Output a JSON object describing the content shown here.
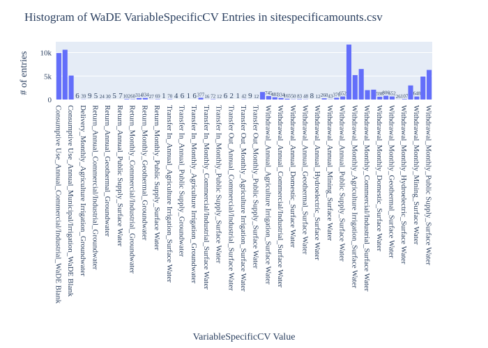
{
  "chart_data": {
    "type": "bar",
    "title": "Histogram of WaDE VariableSpecificCV Entries in sitespecificamounts.csv",
    "x_label": "VariableSpecificCV Value",
    "y_label": "# of entries",
    "color": "#636efa",
    "grid": true,
    "ylim": [
      0,
      12300
    ],
    "yticks": [
      0,
      {
        "value": 5000,
        "label": "5k"
      },
      {
        "value": 10000,
        "label": "10k"
      }
    ],
    "categories": [
      "Consumptive Use_Annual_Commercial/Industrial_WaDE Blank",
      null,
      "Consumptive Use_Annual_Municipal/Irrigation_WaDE Blank",
      null,
      "Delivery_Monthly_Agriculture Irrigation_Groundwater",
      null,
      "Return_Annual_Commercial/Industrial_Groundwater",
      null,
      "Return_Annual_Geothermal_Groundwater",
      null,
      "Return_Annual_Public Supply_Surface Water",
      null,
      "Return_Monthly_Commercial/Industrial_Groundwater",
      null,
      "Return_Monthly_Geothermal_Groundwater",
      null,
      "Return_Monthly_Public Supply_Surface Water",
      null,
      "Transfer In_Annual_Agriculture Irrigation_Surface Water",
      null,
      "Transfer In_Annual_Public Supply_Groundwater",
      null,
      "Transfer In_Monthly_Agriculture Irrigation_Groundwater",
      null,
      "Transfer In_Monthly_Commercial/Industrial_Surface Water",
      null,
      "Transfer In_Monthly_Public Supply_Surface Water",
      null,
      "Transfer Out_Annual_Commercial/Industrial_Surface Water",
      null,
      "Transfer Out_Monthly_Agriculture Irrigation_Surface Water",
      null,
      "Transfer Out_Monthly_Public Supply_Surface Water",
      null,
      "Withdrawal_Annual_Agriculture Irrigation_Surface Water",
      null,
      "Withdrawal_Annual_Commercial/Industrial_Surface Water",
      null,
      "Withdrawal_Annual_Domestic_Surface Water",
      null,
      "Withdrawal_Annual_Geothermal_Surface Water",
      null,
      "Withdrawal_Annual_Hydroelectric_Surface Water",
      null,
      "Withdrawal_Annual_Mining_Surface Water",
      null,
      "Withdrawal_Annual_Public Supply_Surface Water",
      null,
      "Withdrawal_Monthly_Agriculture Irrigation_Surface Water",
      null,
      "Withdrawal_Monthly_Commercial/Industrial_Surface Water",
      null,
      "Withdrawal_Monthly_Domestic_Surface Water",
      null,
      "Withdrawal_Monthly_Geothermal_Surface Water",
      null,
      "Withdrawal_Monthly_Hydroelectric_Surface Water",
      null,
      "Withdrawal_Monthly_Mining_Surface Water",
      null,
      "Withdrawal_Monthly_Public Supply_Surface Water"
    ],
    "values": [
      9900,
      10600,
      5100,
      6,
      39,
      9,
      5,
      24,
      30,
      5,
      7,
      102,
      60,
      314,
      334,
      27,
      69,
      1,
      70,
      4,
      6,
      1,
      6,
      377,
      16,
      72,
      12,
      6,
      2,
      1,
      42,
      9,
      12,
      1600,
      745,
      481,
      334,
      165,
      50,
      83,
      48,
      8,
      12,
      260,
      43,
      376,
      652,
      11700,
      5200,
      6500,
      2000,
      2100,
      598,
      806,
      652,
      26,
      107,
      3000,
      648,
      4900,
      6300
    ]
  }
}
